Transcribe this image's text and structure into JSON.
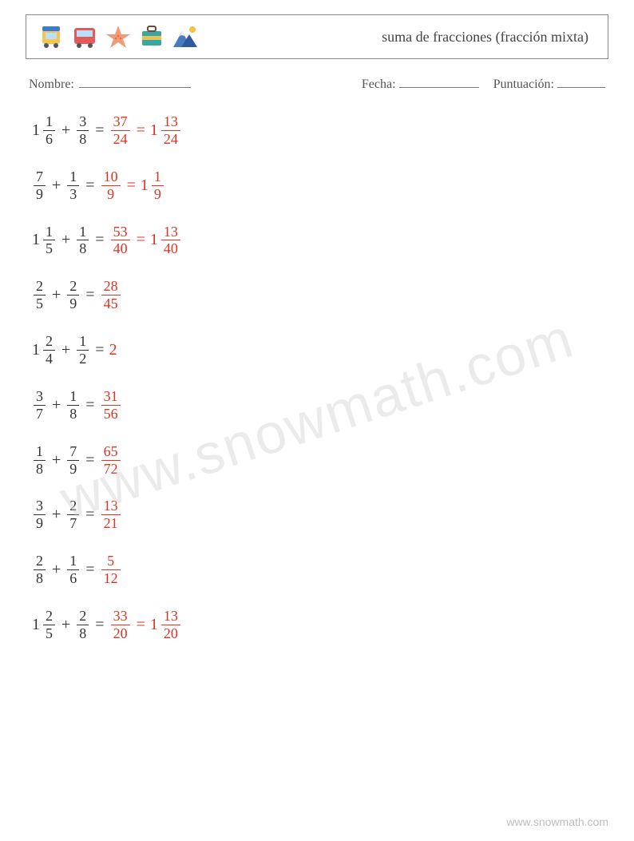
{
  "colors": {
    "text": "#333333",
    "answer": "#e03322",
    "border": "#888888",
    "watermark": "#cccccc",
    "footer": "#bdbdbd",
    "background": "#ffffff"
  },
  "typography": {
    "body_font": "Georgia, Times New Roman, serif",
    "title_fontsize": 18,
    "problem_fontsize": 20,
    "frac_fontsize": 18,
    "meta_fontsize": 16
  },
  "header": {
    "title": "suma de fracciones (fracción mixta)",
    "icons": [
      "tram-icon",
      "bus-icon",
      "starfish-icon",
      "suitcase-icon",
      "mountain-icon"
    ],
    "icon_colors": {
      "tram": {
        "body": "#f6c453",
        "roof": "#3a7bd5",
        "wheel": "#555"
      },
      "bus": {
        "body": "#e15b5b",
        "window": "#bcdff7",
        "wheel": "#555"
      },
      "starfish": {
        "fill": "#f29a76",
        "dot": "#d46b4a"
      },
      "suitcase": {
        "body": "#3aa6a0",
        "strap": "#e8c25a",
        "handle": "#6b4b3a"
      },
      "mountain": {
        "back": "#4a7bbf",
        "front": "#2e5a9e",
        "snow": "#ffffff",
        "sun": "#f4c04a"
      }
    }
  },
  "meta": {
    "name_label": "Nombre:",
    "date_label": "Fecha:",
    "score_label": "Puntuación:"
  },
  "watermark": "www.snowmath.com",
  "footer": "www.snowmath.com",
  "problems": [
    {
      "lhs": {
        "a": {
          "whole": "1",
          "num": "1",
          "den": "6"
        },
        "b": {
          "num": "3",
          "den": "8"
        }
      },
      "improper": {
        "num": "37",
        "den": "24"
      },
      "mixed": {
        "whole": "1",
        "num": "13",
        "den": "24"
      }
    },
    {
      "lhs": {
        "a": {
          "num": "7",
          "den": "9"
        },
        "b": {
          "num": "1",
          "den": "3"
        }
      },
      "improper": {
        "num": "10",
        "den": "9"
      },
      "mixed": {
        "whole": "1",
        "num": "1",
        "den": "9"
      }
    },
    {
      "lhs": {
        "a": {
          "whole": "1",
          "num": "1",
          "den": "5"
        },
        "b": {
          "num": "1",
          "den": "8"
        }
      },
      "improper": {
        "num": "53",
        "den": "40"
      },
      "mixed": {
        "whole": "1",
        "num": "13",
        "den": "40"
      }
    },
    {
      "lhs": {
        "a": {
          "num": "2",
          "den": "5"
        },
        "b": {
          "num": "2",
          "den": "9"
        }
      },
      "improper": {
        "num": "28",
        "den": "45"
      }
    },
    {
      "lhs": {
        "a": {
          "whole": "1",
          "num": "2",
          "den": "4"
        },
        "b": {
          "num": "1",
          "den": "2"
        }
      },
      "wholeAnswer": "2"
    },
    {
      "lhs": {
        "a": {
          "num": "3",
          "den": "7"
        },
        "b": {
          "num": "1",
          "den": "8"
        }
      },
      "improper": {
        "num": "31",
        "den": "56"
      }
    },
    {
      "lhs": {
        "a": {
          "num": "1",
          "den": "8"
        },
        "b": {
          "num": "7",
          "den": "9"
        }
      },
      "improper": {
        "num": "65",
        "den": "72"
      }
    },
    {
      "lhs": {
        "a": {
          "num": "3",
          "den": "9"
        },
        "b": {
          "num": "2",
          "den": "7"
        }
      },
      "improper": {
        "num": "13",
        "den": "21"
      }
    },
    {
      "lhs": {
        "a": {
          "num": "2",
          "den": "8"
        },
        "b": {
          "num": "1",
          "den": "6"
        }
      },
      "improper": {
        "num": "5",
        "den": "12"
      }
    },
    {
      "lhs": {
        "a": {
          "whole": "1",
          "num": "2",
          "den": "5"
        },
        "b": {
          "num": "2",
          "den": "8"
        }
      },
      "improper": {
        "num": "33",
        "den": "20"
      },
      "mixed": {
        "whole": "1",
        "num": "13",
        "den": "20"
      }
    }
  ]
}
